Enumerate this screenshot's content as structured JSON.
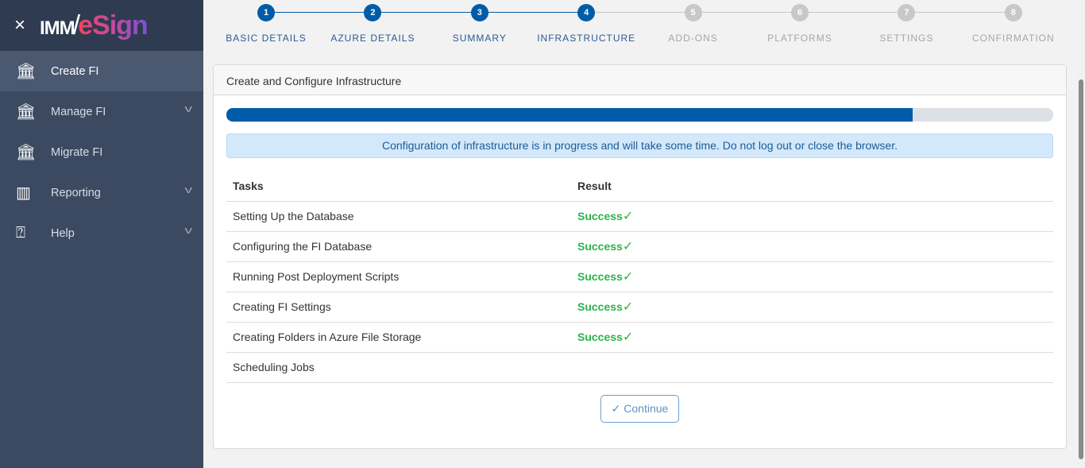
{
  "sidebar": {
    "close_icon": "×",
    "logo_text": "IMM/eSign",
    "logo_imm": "IMM",
    "logo_slash": "/",
    "logo_esign": "eSign",
    "items": [
      {
        "label": "Create FI",
        "icon": "bank-plus-icon",
        "active": true
      },
      {
        "label": "Manage FI",
        "icon": "bank-gear-icon",
        "expandable": true
      },
      {
        "label": "Migrate FI",
        "icon": "bank-arrow-icon"
      },
      {
        "label": "Reporting",
        "icon": "bar-chart-icon",
        "expandable": true
      },
      {
        "label": "Help",
        "icon": "help-bubble-icon",
        "expandable": true
      }
    ]
  },
  "steps": [
    {
      "n": "1",
      "label": "BASIC DETAILS",
      "done": true
    },
    {
      "n": "2",
      "label": "AZURE DETAILS",
      "done": true
    },
    {
      "n": "3",
      "label": "SUMMARY",
      "done": true
    },
    {
      "n": "4",
      "label": "INFRASTRUCTURE",
      "done": true
    },
    {
      "n": "5",
      "label": "ADD-ONS"
    },
    {
      "n": "6",
      "label": "PLATFORMS"
    },
    {
      "n": "7",
      "label": "SETTINGS"
    },
    {
      "n": "8",
      "label": "CONFIRMATION"
    }
  ],
  "colors": {
    "active": "#005ca8",
    "inactive": "#c8c8c8",
    "success": "#2bb34a"
  },
  "card": {
    "title": "Create and Configure Infrastructure",
    "progress_percent": 83,
    "alert": "Configuration of infrastructure is in progress and will take some time. Do not log out or close the browser.",
    "headers": [
      "Tasks",
      "Result"
    ],
    "rows": [
      {
        "task": "Setting Up the Database",
        "result": "Success"
      },
      {
        "task": "Configuring the FI Database",
        "result": "Success"
      },
      {
        "task": "Running Post Deployment Scripts",
        "result": "Success"
      },
      {
        "task": "Creating FI Settings",
        "result": "Success"
      },
      {
        "task": "Creating Folders in Azure File Storage",
        "result": "Success"
      },
      {
        "task": "Scheduling Jobs",
        "result": ""
      }
    ],
    "check": "✓",
    "continue_label": "Continue"
  }
}
